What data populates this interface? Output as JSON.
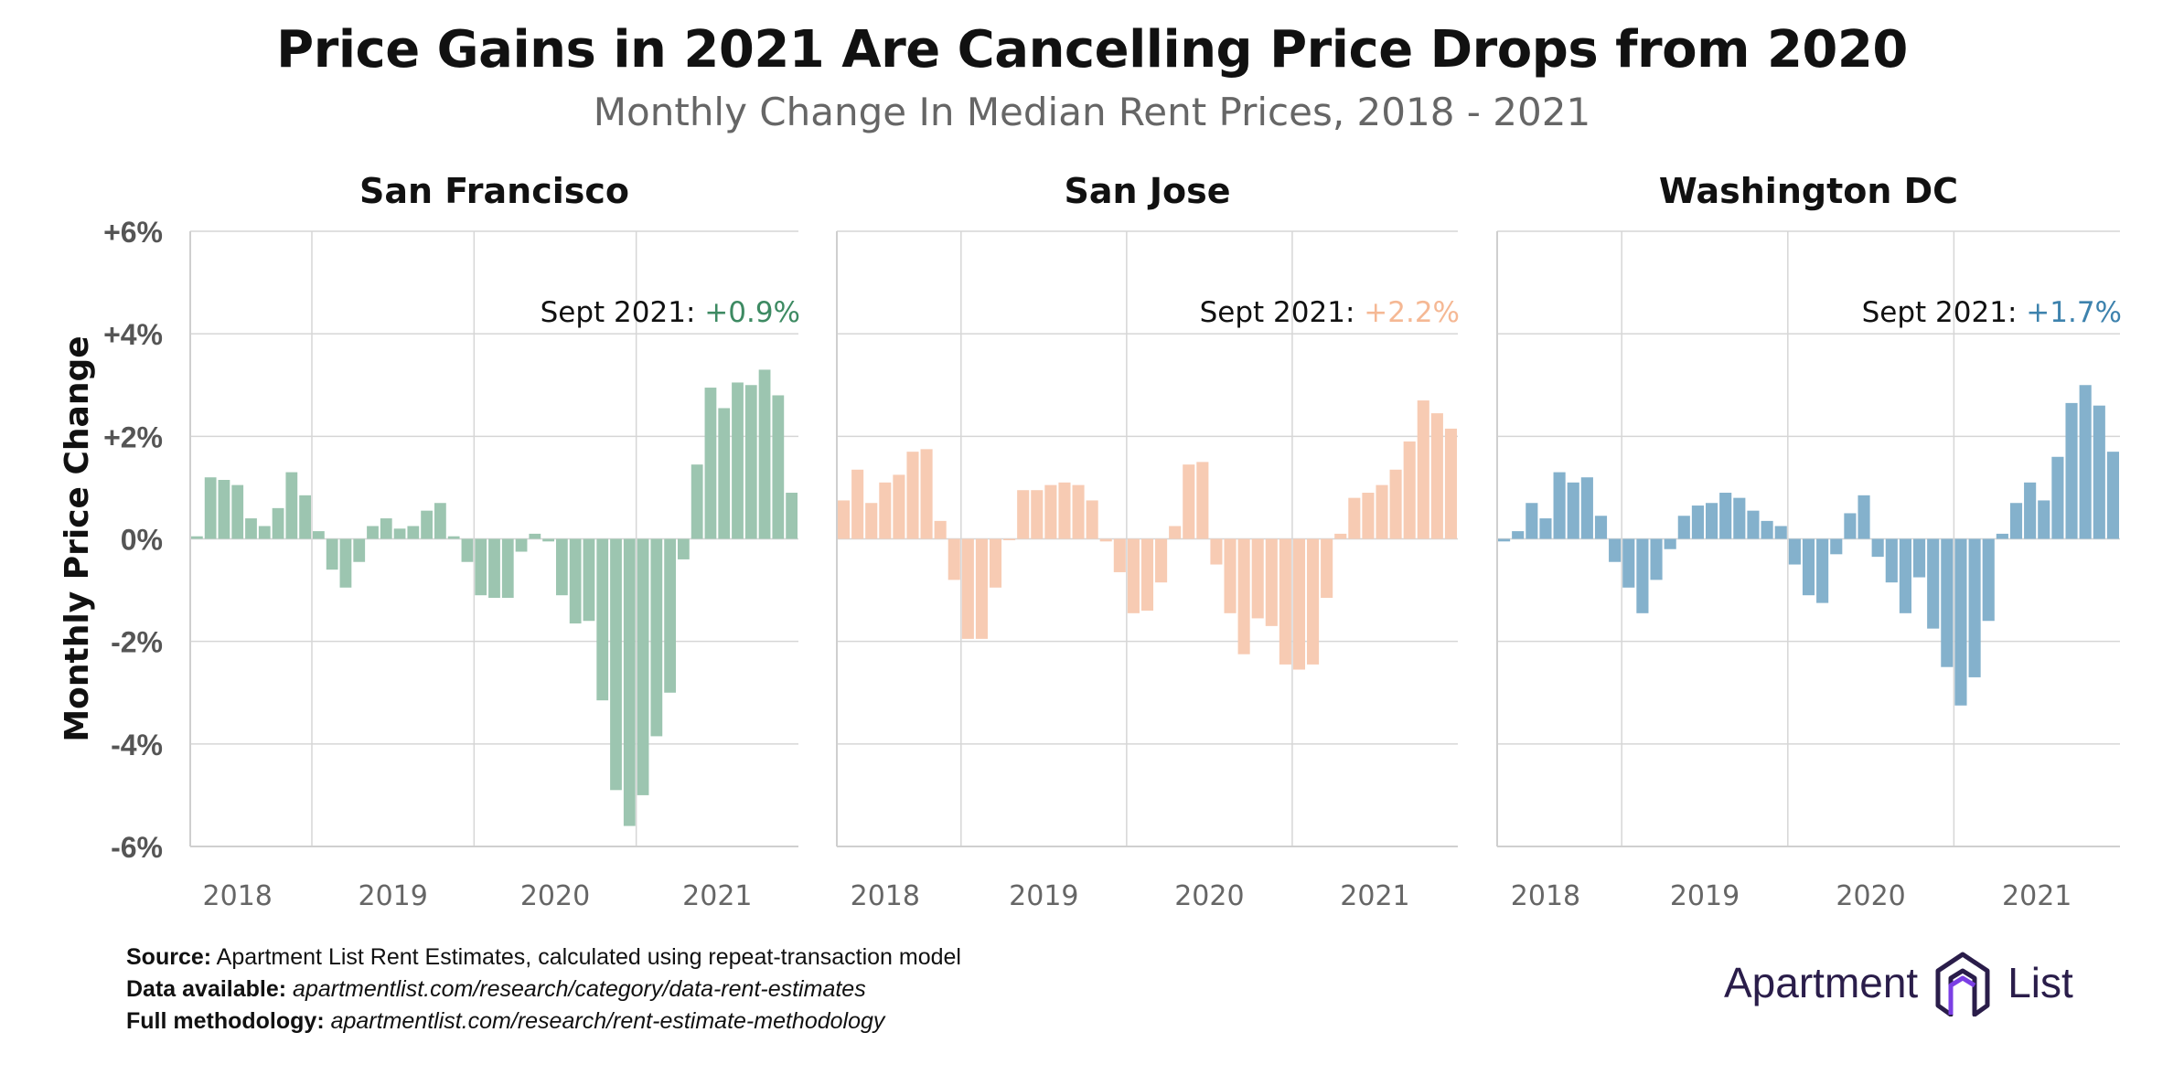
{
  "title": "Price Gains in 2021 Are Cancelling Price Drops from 2020",
  "subtitle": "Monthly Change In Median Rent Prices, 2018 - 2021",
  "chart_data": {
    "type": "bar",
    "ylabel": "Monthly Price Change",
    "ylim": [
      -6,
      6
    ],
    "y_ticks": [
      "+6%",
      "+4%",
      "+2%",
      "0%",
      "-2%",
      "-4%",
      "-6%"
    ],
    "x_ticks": [
      "2018",
      "2019",
      "2020",
      "2021"
    ],
    "grid": true,
    "panels": [
      {
        "name": "San Francisco",
        "color": "#9cc5b0",
        "annotation_label": "Sept 2021:",
        "annotation_value": "+0.9%",
        "annotation_color": "#3d8a62",
        "values": [
          0.05,
          1.2,
          1.15,
          1.05,
          0.4,
          0.25,
          0.6,
          1.3,
          0.85,
          0.15,
          -0.6,
          -0.95,
          -0.45,
          0.25,
          0.4,
          0.2,
          0.25,
          0.55,
          0.7,
          0.05,
          -0.45,
          -1.1,
          -1.15,
          -1.15,
          -0.25,
          0.1,
          -0.05,
          -1.1,
          -1.65,
          -1.6,
          -3.15,
          -4.9,
          -5.6,
          -5.0,
          -3.85,
          -3.0,
          -0.4,
          1.45,
          2.95,
          2.55,
          3.05,
          3.0,
          3.3,
          2.8,
          0.9
        ]
      },
      {
        "name": "San Jose",
        "color": "#f7cbb3",
        "annotation_label": "Sept 2021:",
        "annotation_value": "+2.2%",
        "annotation_color": "#f5b894",
        "values": [
          0.75,
          1.35,
          0.7,
          1.1,
          1.25,
          1.7,
          1.75,
          0.35,
          -0.8,
          -1.95,
          -1.95,
          -0.95,
          0.0,
          0.95,
          0.95,
          1.05,
          1.1,
          1.05,
          0.75,
          -0.05,
          -0.65,
          -1.45,
          -1.4,
          -0.85,
          0.25,
          1.45,
          1.5,
          -0.5,
          -1.45,
          -2.25,
          -1.55,
          -1.7,
          -2.45,
          -2.55,
          -2.45,
          -1.15,
          0.1,
          0.8,
          0.9,
          1.05,
          1.35,
          1.9,
          2.7,
          2.45,
          2.15
        ]
      },
      {
        "name": "Washington DC",
        "color": "#84b1cc",
        "annotation_label": "Sept 2021:",
        "annotation_value": "+1.7%",
        "annotation_color": "#3d82ad",
        "values": [
          -0.05,
          0.15,
          0.7,
          0.4,
          1.3,
          1.1,
          1.2,
          0.45,
          -0.45,
          -0.95,
          -1.45,
          -0.8,
          -0.2,
          0.45,
          0.65,
          0.7,
          0.9,
          0.8,
          0.55,
          0.35,
          0.25,
          -0.5,
          -1.1,
          -1.25,
          -0.3,
          0.5,
          0.85,
          -0.35,
          -0.85,
          -1.45,
          -0.75,
          -1.75,
          -2.5,
          -3.25,
          -2.7,
          -1.6,
          0.1,
          0.7,
          1.1,
          0.75,
          1.6,
          2.65,
          3.0,
          2.6,
          1.7
        ]
      }
    ]
  },
  "footer": {
    "source_label": "Source:",
    "source_text": "Apartment List Rent Estimates, calculated using repeat-transaction model",
    "data_label": "Data available:",
    "data_text": "apartmentlist.com/research/category/data-rent-estimates",
    "method_label": "Full methodology:",
    "method_text": "apartmentlist.com/research/rent-estimate-methodology"
  },
  "logo": {
    "word1": "Apartment",
    "word2": "List",
    "icon": "apartment-list-logo-icon",
    "color": "#2a1d4a",
    "accent": "#7b3fe4"
  }
}
